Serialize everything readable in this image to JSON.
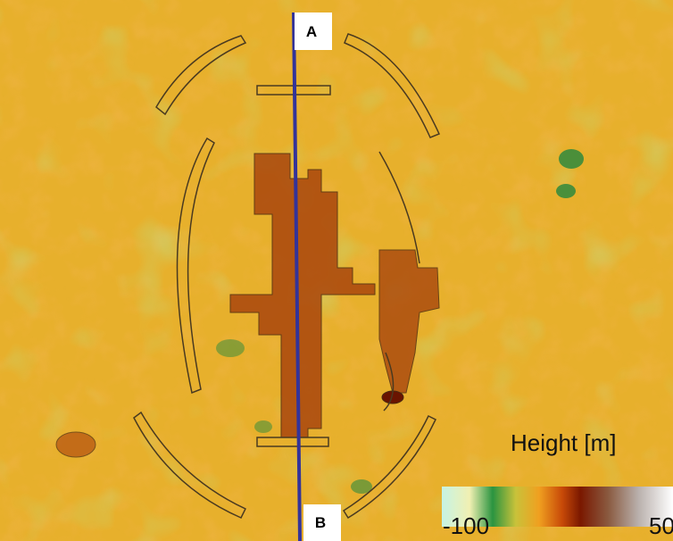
{
  "section_line": {
    "start_label": "A",
    "end_label": "B"
  },
  "colorbar": {
    "title": "Height [m]",
    "ticks": [
      -100,
      50
    ]
  }
}
